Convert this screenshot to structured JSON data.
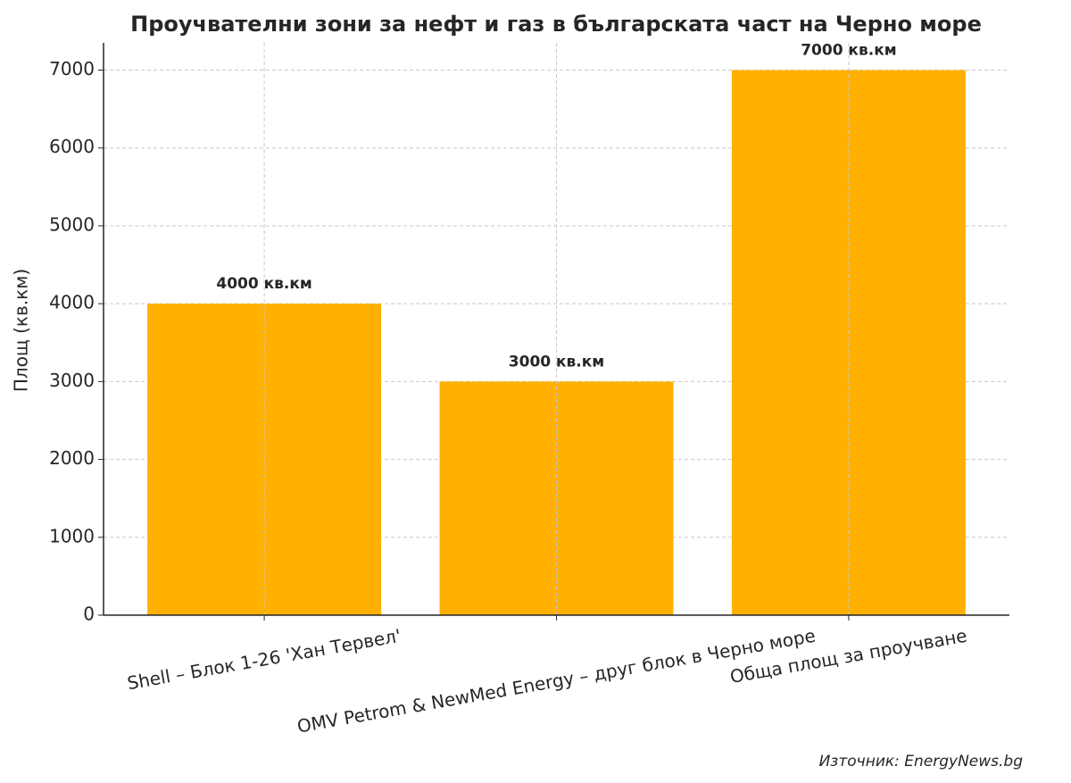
{
  "chart_data": {
    "type": "bar",
    "title": "Проучвателни зони за нефт и газ в българската част на Черно море",
    "y_label": "Площ (кв.км)",
    "categories": [
      "Shell – Блок 1-26 'Хан Тервел'",
      "OMV Petrom & NewMed Energy – друг блок в Черно море",
      "Обща площ за проучване"
    ],
    "values": [
      4000,
      3000,
      7000
    ],
    "value_labels": [
      "4000 кв.км",
      "3000 кв.км",
      "7000 кв.км"
    ],
    "color": "#ffb000",
    "ylim": [
      0,
      7350
    ],
    "yticks": [
      0,
      1000,
      2000,
      3000,
      4000,
      5000,
      6000,
      7000
    ],
    "grid": true,
    "source": "Източник: EnergyNews.bg"
  }
}
